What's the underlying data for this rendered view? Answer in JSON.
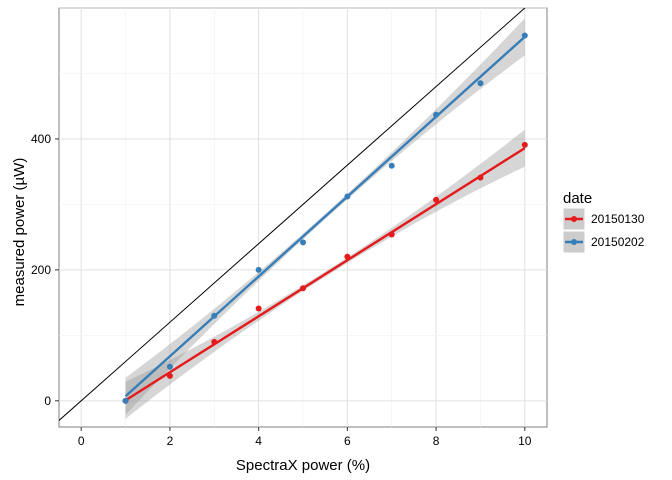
{
  "chart_data": {
    "type": "scatter",
    "title": "",
    "xlabel": "SpectraX power (%)",
    "ylabel": "measured power (µW)",
    "xlim": [
      -0.5,
      10.5
    ],
    "ylim": [
      -40,
      600
    ],
    "xticks": [
      "0",
      "2",
      "4",
      "6",
      "8",
      "10"
    ],
    "yticks": [
      "0",
      "200",
      "400"
    ],
    "grid": true,
    "legend": {
      "title": "date",
      "position": "right"
    },
    "reference_line": {
      "slope": 60,
      "intercept": 0,
      "color": "#000000"
    },
    "series": [
      {
        "name": "20150130",
        "color": "#e41a1c",
        "x": [
          1,
          2,
          3,
          4,
          5,
          6,
          7,
          8,
          9,
          10
        ],
        "y": [
          0,
          38,
          90,
          141,
          172,
          220,
          254,
          307,
          341,
          391
        ],
        "fit": {
          "slope": 42.8,
          "intercept": -42
        }
      },
      {
        "name": "20150202",
        "color": "#377eb8",
        "x": [
          1,
          2,
          3,
          4,
          5,
          6,
          7,
          8,
          9,
          10
        ],
        "y": [
          0,
          52,
          130,
          200,
          242,
          312,
          359,
          437,
          485,
          558
        ],
        "fit": {
          "slope": 61.0,
          "intercept": -54
        }
      }
    ]
  }
}
